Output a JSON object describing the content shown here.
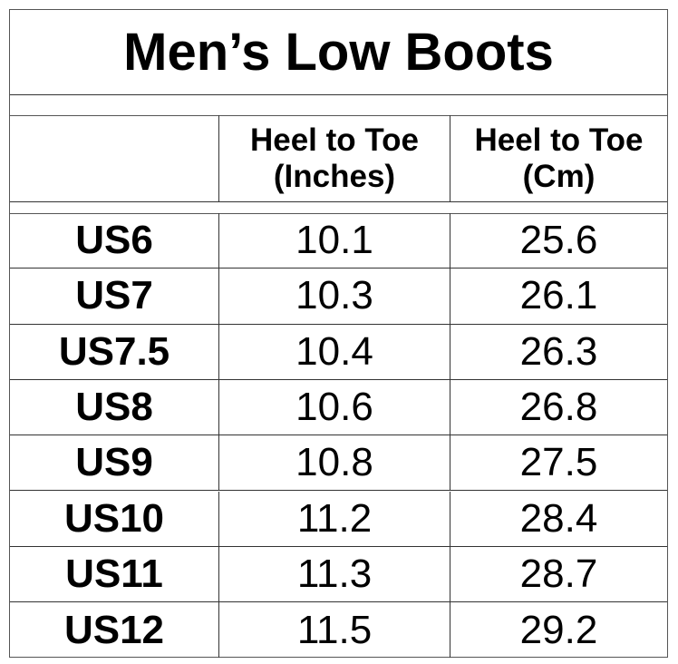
{
  "title": "Men’s Low Boots",
  "headers": [
    "",
    "Heel to Toe (Inches)",
    "Heel to Toe (Cm)"
  ],
  "rows": [
    {
      "size": "US6",
      "inches": "10.1",
      "cm": "25.6"
    },
    {
      "size": "US7",
      "inches": "10.3",
      "cm": "26.1"
    },
    {
      "size": "US7.5",
      "inches": "10.4",
      "cm": "26.3"
    },
    {
      "size": "US8",
      "inches": "10.6",
      "cm": "26.8"
    },
    {
      "size": "US9",
      "inches": "10.8",
      "cm": "27.5"
    },
    {
      "size": "US10",
      "inches": "11.2",
      "cm": "28.4"
    },
    {
      "size": "US11",
      "inches": "11.3",
      "cm": "28.7"
    },
    {
      "size": "US12",
      "inches": "11.5",
      "cm": "29.2"
    }
  ]
}
